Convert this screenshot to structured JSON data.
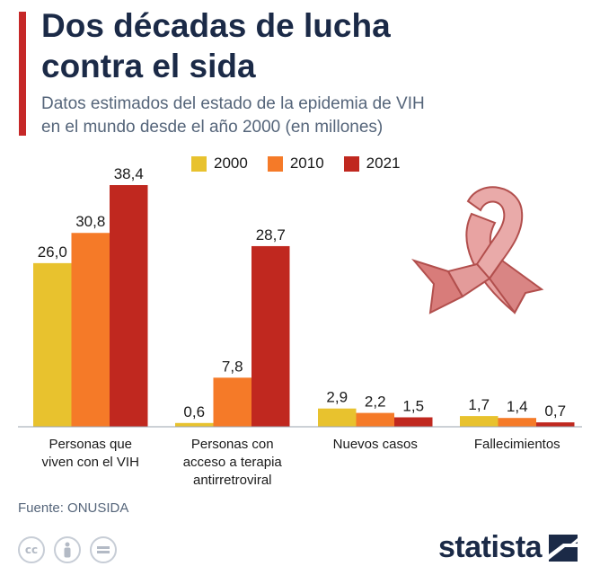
{
  "header": {
    "title_line1": "Dos décadas de lucha",
    "title_line2": "contra el sida",
    "subtitle_line1": "Datos estimados del estado de la epidemia de VIH",
    "subtitle_line2": "en el mundo desde el año 2000 (en millones)"
  },
  "footer": {
    "source": "Fuente: ONUSIDA",
    "brand": "statista",
    "license_icons": [
      "cc-icon",
      "attribution-icon",
      "no-derivatives-icon"
    ]
  },
  "decoration": {
    "icon": "awareness-ribbon-icon"
  },
  "chart_data": {
    "type": "bar",
    "title": "Dos décadas de lucha contra el sida",
    "subtitle": "Datos estimados del estado de la epidemia de VIH en el mundo desde el año 2000 (en millones)",
    "xlabel": "",
    "ylabel": "",
    "ylim": [
      0,
      38.4
    ],
    "grid": false,
    "legend_position": "top",
    "categories": [
      [
        "Personas que",
        "viven con el VIH"
      ],
      [
        "Personas con",
        "acceso a terapia",
        "antirretroviral"
      ],
      [
        "Nuevos casos"
      ],
      [
        "Fallecimientos"
      ]
    ],
    "series": [
      {
        "name": "2000",
        "color": "#e8c22e",
        "values": [
          26.0,
          0.6,
          2.9,
          1.7
        ],
        "labels": [
          "26,0",
          "0,6",
          "2,9",
          "1,7"
        ]
      },
      {
        "name": "2010",
        "color": "#f57a28",
        "values": [
          30.8,
          7.8,
          2.2,
          1.4
        ],
        "labels": [
          "30,8",
          "7,8",
          "2,2",
          "1,4"
        ]
      },
      {
        "name": "2021",
        "color": "#c0281f",
        "values": [
          38.4,
          28.7,
          1.5,
          0.7
        ],
        "labels": [
          "38,4",
          "28,7",
          "1,5",
          "0,7"
        ]
      }
    ]
  }
}
